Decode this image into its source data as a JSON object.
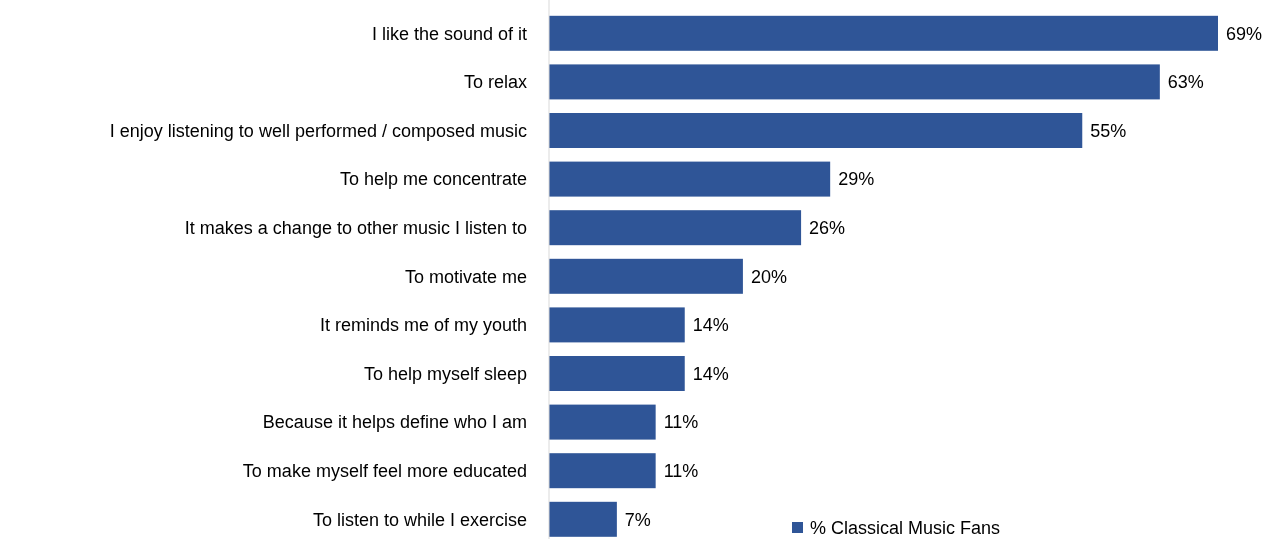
{
  "chart_data": {
    "type": "bar",
    "orientation": "horizontal",
    "categories": [
      "I like the sound of it",
      "To relax",
      "I enjoy listening to well performed / composed music",
      "To help me concentrate",
      "It makes a change to other music I listen to",
      "To motivate me",
      "It reminds me of my youth",
      "To help myself sleep",
      "Because it helps define who I am",
      "To make myself feel more educated",
      "To listen to while I exercise"
    ],
    "series": [
      {
        "name": "% Classical Music Fans",
        "color": "#2f5597",
        "values": [
          69,
          63,
          55,
          29,
          26,
          20,
          14,
          14,
          11,
          11,
          7
        ],
        "value_labels": [
          "69%",
          "63%",
          "55%",
          "29%",
          "26%",
          "20%",
          "14%",
          "14%",
          "11%",
          "11%",
          "7%"
        ]
      }
    ],
    "legend": "bottom right"
  }
}
